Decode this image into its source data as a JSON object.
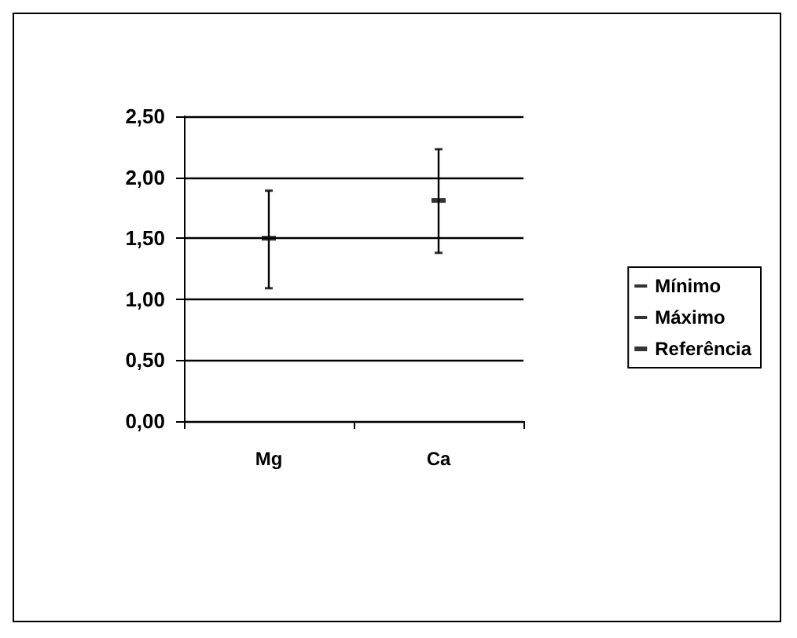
{
  "chart_data": {
    "type": "scatter",
    "categories": [
      "Mg",
      "Ca"
    ],
    "series": [
      {
        "name": "Mínimo",
        "color": "#000000",
        "marker": "square",
        "values": [
          1.09,
          1.38
        ]
      },
      {
        "name": "Máximo",
        "color": "#000000",
        "marker": "square",
        "values": [
          1.89,
          2.23
        ]
      },
      {
        "name": "Referência",
        "color": "#000000",
        "marker": "square",
        "values": [
          1.5,
          1.81
        ]
      }
    ],
    "ylim": [
      0,
      2.5
    ],
    "yticks": [
      {
        "value": 0,
        "label": "0,00"
      },
      {
        "value": 0.5,
        "label": "0,50"
      },
      {
        "value": 1,
        "label": "1,00"
      },
      {
        "value": 1.5,
        "label": "1,50"
      },
      {
        "value": 2,
        "label": "2,00"
      },
      {
        "value": 2.5,
        "label": "2,50"
      }
    ],
    "grid": "y",
    "legend": "right"
  }
}
